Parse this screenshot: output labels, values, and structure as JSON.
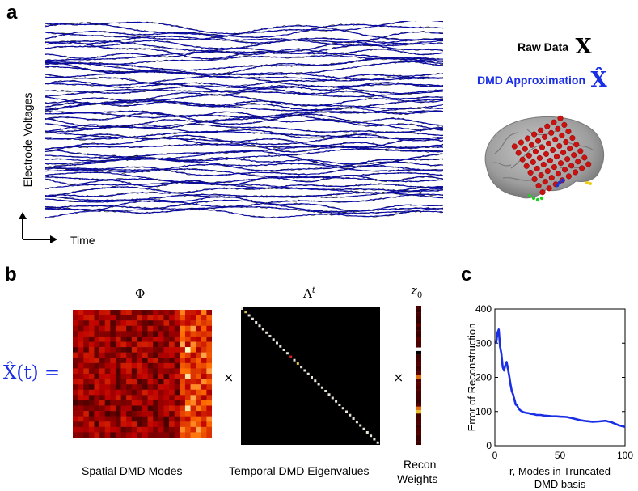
{
  "panel_a": {
    "letter": "a",
    "ylabel": "Electrode Voltages",
    "xlabel": "Time",
    "legend": {
      "raw_label": "Raw Data",
      "raw_symbol": "X",
      "dmd_label": "DMD Approximation",
      "dmd_symbol": "X̂",
      "raw_color": "#000000",
      "dmd_color": "#1a2ee6"
    },
    "trace_color_raw": "#1a1a2e",
    "trace_color_dmd": "#0a0aa8"
  },
  "panel_b": {
    "letter": "b",
    "equation_lhs": "X̂(t) =",
    "phi_title": "Φ",
    "lambda_title": "Λ",
    "lambda_sup": "t",
    "z_title": "z",
    "z_sub": "0",
    "times_1": "×",
    "times_2": "×",
    "phi_label": "Spatial DMD Modes",
    "lambda_label": "Temporal DMD Eigenvalues",
    "z_label_1": "Recon",
    "z_label_2": "Weights",
    "equation_color": "#1a2ee6"
  },
  "chart_data": {
    "type": "line",
    "panel_letter": "c",
    "ylabel": "Error of Reconstruction",
    "xlabel_1": "r, Modes in Truncated",
    "xlabel_2": "DMD basis",
    "xlim": [
      0,
      100
    ],
    "ylim": [
      0,
      400
    ],
    "xticks": [
      "0",
      "50",
      "100"
    ],
    "yticks": [
      "0",
      "100",
      "200",
      "300",
      "400"
    ],
    "grid": false,
    "line_color": "#1a2ee6",
    "series": [
      {
        "x": [
          1,
          2,
          3,
          4,
          5,
          6,
          7,
          8,
          9,
          10,
          11,
          12,
          13,
          14,
          15,
          16,
          17,
          18,
          19,
          20,
          22,
          24,
          26,
          28,
          30,
          32,
          35,
          38,
          41,
          44,
          47,
          50,
          55,
          60,
          65,
          70,
          75,
          80,
          85,
          90,
          95,
          100
        ],
        "values": [
          300,
          330,
          340,
          290,
          270,
          230,
          220,
          235,
          245,
          225,
          205,
          180,
          160,
          150,
          135,
          120,
          118,
          110,
          105,
          102,
          98,
          96,
          95,
          93,
          92,
          90,
          90,
          88,
          87,
          86,
          86,
          85,
          84,
          80,
          75,
          72,
          70,
          71,
          73,
          68,
          60,
          55
        ]
      }
    ]
  }
}
